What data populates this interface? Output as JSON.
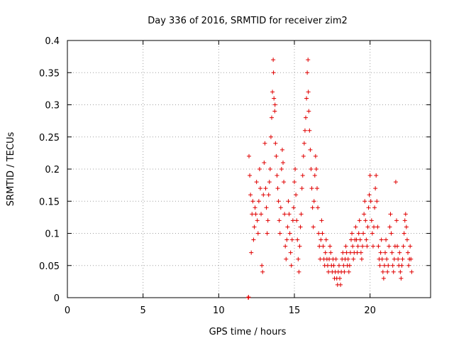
{
  "chart_data": {
    "type": "scatter",
    "title": "Day 336 of 2016, SRMTID for receiver zim2",
    "xlabel": "GPS time / hours",
    "ylabel": "SRMTID / TECUs",
    "xlim": [
      0,
      24
    ],
    "ylim": [
      0,
      0.4
    ],
    "xticks": [
      0,
      5,
      10,
      15,
      20
    ],
    "xtick_labels": [
      "0",
      "5",
      "10",
      "15",
      "20"
    ],
    "yticks": [
      0,
      0.05,
      0.1,
      0.15,
      0.2,
      0.25,
      0.3,
      0.35,
      0.4
    ],
    "ytick_labels": [
      "0",
      "0.05",
      "0.1",
      "0.15",
      "0.2",
      "0.25",
      "0.3",
      "0.35",
      "0.4"
    ],
    "grid": true,
    "marker": "plus",
    "color": "#e00000",
    "series": [
      {
        "name": "SRMTID",
        "points": [
          [
            11.95,
            0.0
          ],
          [
            11.96,
            0.0
          ],
          [
            11.97,
            0.001
          ],
          [
            12.0,
            0.22
          ],
          [
            12.05,
            0.19
          ],
          [
            12.1,
            0.16
          ],
          [
            12.15,
            0.07
          ],
          [
            12.2,
            0.13
          ],
          [
            12.25,
            0.15
          ],
          [
            12.3,
            0.09
          ],
          [
            12.35,
            0.11
          ],
          [
            12.4,
            0.14
          ],
          [
            12.45,
            0.13
          ],
          [
            12.5,
            0.18
          ],
          [
            12.55,
            0.12
          ],
          [
            12.6,
            0.1
          ],
          [
            12.65,
            0.15
          ],
          [
            12.7,
            0.2
          ],
          [
            12.75,
            0.17
          ],
          [
            12.8,
            0.13
          ],
          [
            12.85,
            0.05
          ],
          [
            12.9,
            0.04
          ],
          [
            12.95,
            0.16
          ],
          [
            13.0,
            0.21
          ],
          [
            13.05,
            0.24
          ],
          [
            13.1,
            0.17
          ],
          [
            13.15,
            0.14
          ],
          [
            13.2,
            0.1
          ],
          [
            13.25,
            0.12
          ],
          [
            13.3,
            0.16
          ],
          [
            13.35,
            0.18
          ],
          [
            13.4,
            0.2
          ],
          [
            13.45,
            0.25
          ],
          [
            13.5,
            0.28
          ],
          [
            13.55,
            0.32
          ],
          [
            13.6,
            0.37
          ],
          [
            13.62,
            0.35
          ],
          [
            13.65,
            0.31
          ],
          [
            13.7,
            0.29
          ],
          [
            13.72,
            0.3
          ],
          [
            13.75,
            0.24
          ],
          [
            13.8,
            0.22
          ],
          [
            13.85,
            0.19
          ],
          [
            13.9,
            0.17
          ],
          [
            13.95,
            0.15
          ],
          [
            14.0,
            0.12
          ],
          [
            14.05,
            0.1
          ],
          [
            14.1,
            0.14
          ],
          [
            14.15,
            0.2
          ],
          [
            14.2,
            0.23
          ],
          [
            14.25,
            0.21
          ],
          [
            14.3,
            0.18
          ],
          [
            14.35,
            0.13
          ],
          [
            14.4,
            0.08
          ],
          [
            14.45,
            0.06
          ],
          [
            14.5,
            0.09
          ],
          [
            14.55,
            0.11
          ],
          [
            14.6,
            0.15
          ],
          [
            14.65,
            0.13
          ],
          [
            14.7,
            0.1
          ],
          [
            14.75,
            0.07
          ],
          [
            14.8,
            0.05
          ],
          [
            14.85,
            0.09
          ],
          [
            14.9,
            0.12
          ],
          [
            14.95,
            0.14
          ],
          [
            15.0,
            0.18
          ],
          [
            15.05,
            0.2
          ],
          [
            15.1,
            0.16
          ],
          [
            15.15,
            0.12
          ],
          [
            15.2,
            0.09
          ],
          [
            15.25,
            0.06
          ],
          [
            15.3,
            0.04
          ],
          [
            15.35,
            0.08
          ],
          [
            15.4,
            0.11
          ],
          [
            15.45,
            0.13
          ],
          [
            15.5,
            0.17
          ],
          [
            15.55,
            0.19
          ],
          [
            15.6,
            0.22
          ],
          [
            15.65,
            0.24
          ],
          [
            15.7,
            0.26
          ],
          [
            15.75,
            0.28
          ],
          [
            15.8,
            0.31
          ],
          [
            15.85,
            0.35
          ],
          [
            15.9,
            0.37
          ],
          [
            15.92,
            0.32
          ],
          [
            15.95,
            0.29
          ],
          [
            16.0,
            0.26
          ],
          [
            16.05,
            0.23
          ],
          [
            16.1,
            0.2
          ],
          [
            16.15,
            0.17
          ],
          [
            16.2,
            0.14
          ],
          [
            16.25,
            0.11
          ],
          [
            16.3,
            0.15
          ],
          [
            16.35,
            0.19
          ],
          [
            16.4,
            0.22
          ],
          [
            16.45,
            0.2
          ],
          [
            16.5,
            0.17
          ],
          [
            16.55,
            0.14
          ],
          [
            16.6,
            0.1
          ],
          [
            16.65,
            0.08
          ],
          [
            16.7,
            0.06
          ],
          [
            16.75,
            0.09
          ],
          [
            16.8,
            0.12
          ],
          [
            16.85,
            0.1
          ],
          [
            16.9,
            0.08
          ],
          [
            16.95,
            0.06
          ],
          [
            17.0,
            0.05
          ],
          [
            17.05,
            0.07
          ],
          [
            17.1,
            0.09
          ],
          [
            17.15,
            0.06
          ],
          [
            17.2,
            0.05
          ],
          [
            17.25,
            0.04
          ],
          [
            17.3,
            0.06
          ],
          [
            17.35,
            0.08
          ],
          [
            17.4,
            0.07
          ],
          [
            17.45,
            0.05
          ],
          [
            17.5,
            0.04
          ],
          [
            17.55,
            0.06
          ],
          [
            17.6,
            0.05
          ],
          [
            17.65,
            0.03
          ],
          [
            17.7,
            0.04
          ],
          [
            17.75,
            0.06
          ],
          [
            17.8,
            0.03
          ],
          [
            17.85,
            0.02
          ],
          [
            17.9,
            0.04
          ],
          [
            17.95,
            0.05
          ],
          [
            18.0,
            0.03
          ],
          [
            18.05,
            0.02
          ],
          [
            18.1,
            0.04
          ],
          [
            18.15,
            0.06
          ],
          [
            18.2,
            0.07
          ],
          [
            18.25,
            0.05
          ],
          [
            18.3,
            0.04
          ],
          [
            18.35,
            0.06
          ],
          [
            18.4,
            0.08
          ],
          [
            18.45,
            0.07
          ],
          [
            18.5,
            0.05
          ],
          [
            18.55,
            0.06
          ],
          [
            18.6,
            0.04
          ],
          [
            18.65,
            0.05
          ],
          [
            18.7,
            0.07
          ],
          [
            18.75,
            0.09
          ],
          [
            18.8,
            0.1
          ],
          [
            18.85,
            0.08
          ],
          [
            18.9,
            0.06
          ],
          [
            18.95,
            0.07
          ],
          [
            19.0,
            0.09
          ],
          [
            19.05,
            0.11
          ],
          [
            19.1,
            0.09
          ],
          [
            19.15,
            0.07
          ],
          [
            19.2,
            0.08
          ],
          [
            19.25,
            0.1
          ],
          [
            19.3,
            0.12
          ],
          [
            19.35,
            0.09
          ],
          [
            19.4,
            0.07
          ],
          [
            19.45,
            0.06
          ],
          [
            19.5,
            0.08
          ],
          [
            19.55,
            0.1
          ],
          [
            19.6,
            0.13
          ],
          [
            19.65,
            0.15
          ],
          [
            19.7,
            0.12
          ],
          [
            19.75,
            0.09
          ],
          [
            19.8,
            0.08
          ],
          [
            19.85,
            0.11
          ],
          [
            19.9,
            0.14
          ],
          [
            19.95,
            0.16
          ],
          [
            20.0,
            0.19
          ],
          [
            20.05,
            0.15
          ],
          [
            20.1,
            0.12
          ],
          [
            20.15,
            0.1
          ],
          [
            20.2,
            0.08
          ],
          [
            20.25,
            0.11
          ],
          [
            20.3,
            0.14
          ],
          [
            20.35,
            0.17
          ],
          [
            20.4,
            0.19
          ],
          [
            20.45,
            0.15
          ],
          [
            20.5,
            0.11
          ],
          [
            20.55,
            0.08
          ],
          [
            20.6,
            0.06
          ],
          [
            20.65,
            0.05
          ],
          [
            20.7,
            0.07
          ],
          [
            20.75,
            0.09
          ],
          [
            20.8,
            0.06
          ],
          [
            20.85,
            0.04
          ],
          [
            20.9,
            0.03
          ],
          [
            20.95,
            0.05
          ],
          [
            21.0,
            0.07
          ],
          [
            21.05,
            0.09
          ],
          [
            21.1,
            0.06
          ],
          [
            21.15,
            0.04
          ],
          [
            21.2,
            0.05
          ],
          [
            21.25,
            0.08
          ],
          [
            21.3,
            0.11
          ],
          [
            21.35,
            0.13
          ],
          [
            21.4,
            0.1
          ],
          [
            21.45,
            0.07
          ],
          [
            21.5,
            0.05
          ],
          [
            21.55,
            0.04
          ],
          [
            21.6,
            0.06
          ],
          [
            21.65,
            0.08
          ],
          [
            21.7,
            0.18
          ],
          [
            21.75,
            0.12
          ],
          [
            21.8,
            0.08
          ],
          [
            21.85,
            0.06
          ],
          [
            21.9,
            0.05
          ],
          [
            21.95,
            0.07
          ],
          [
            22.0,
            0.04
          ],
          [
            22.05,
            0.03
          ],
          [
            22.1,
            0.05
          ],
          [
            22.15,
            0.06
          ],
          [
            22.2,
            0.08
          ],
          [
            22.25,
            0.1
          ],
          [
            22.3,
            0.12
          ],
          [
            22.35,
            0.13
          ],
          [
            22.4,
            0.11
          ],
          [
            22.45,
            0.09
          ],
          [
            22.5,
            0.07
          ],
          [
            22.55,
            0.05
          ],
          [
            22.6,
            0.06
          ],
          [
            22.65,
            0.08
          ],
          [
            22.7,
            0.06
          ],
          [
            22.75,
            0.04
          ]
        ]
      }
    ]
  }
}
